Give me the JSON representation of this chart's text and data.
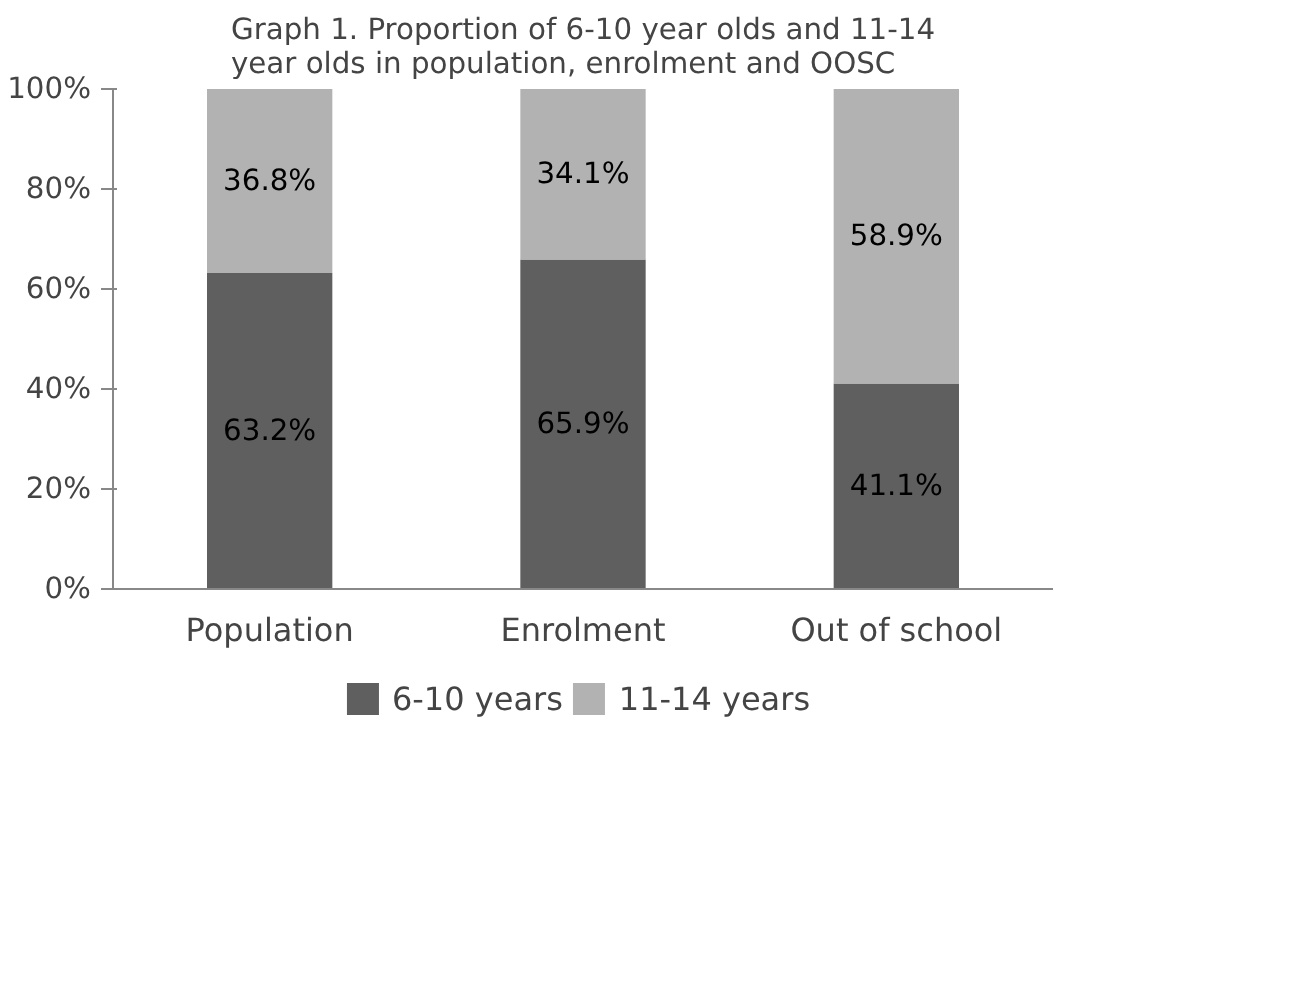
{
  "chart_data": {
    "type": "bar",
    "stacked": true,
    "title": "Graph 1. Proportion of 6-10 year olds and 11-14 year olds in population, enrolment and OOSC",
    "categories": [
      "Population",
      "Enrolment",
      "Out of school"
    ],
    "series": [
      {
        "name": "6-10 years",
        "color": "#5f5f5f",
        "values": [
          63.2,
          65.9,
          41.1
        ],
        "value_labels": [
          "63.2%",
          "65.9%",
          "41.1%"
        ]
      },
      {
        "name": "11-14 years",
        "color": "#b2b2b2",
        "values": [
          36.8,
          34.1,
          58.9
        ],
        "value_labels": [
          "36.8%",
          "34.1%",
          "58.9%"
        ]
      }
    ],
    "ylim": [
      0,
      100
    ],
    "yticks": [
      {
        "value": 0,
        "label": "0%"
      },
      {
        "value": 20,
        "label": "20%"
      },
      {
        "value": 40,
        "label": "40%"
      },
      {
        "value": 60,
        "label": "60%"
      },
      {
        "value": 80,
        "label": "80%"
      },
      {
        "value": 100,
        "label": "100%"
      }
    ],
    "grid": false,
    "legend": "bottom"
  }
}
